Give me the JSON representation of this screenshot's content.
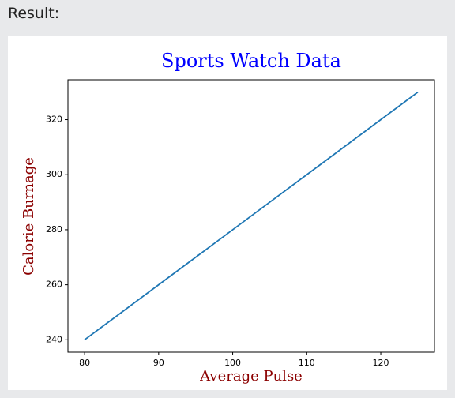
{
  "page": {
    "label": "Result:"
  },
  "chart_data": {
    "type": "line",
    "title": "Sports Watch Data",
    "x_label": "Average Pulse",
    "y_label": "Calorie Burnage",
    "x": [
      80,
      85,
      90,
      95,
      100,
      105,
      110,
      115,
      120,
      125
    ],
    "series": [
      {
        "color": "#1f77b4",
        "values": [
          240,
          250,
          260,
          270,
          280,
          290,
          300,
          310,
          320,
          330
        ]
      }
    ],
    "xlim": [
      77.75,
      127.25
    ],
    "xticks": [
      80,
      90,
      100,
      110,
      120
    ],
    "ylim": [
      235.5,
      334.5
    ],
    "yticks": [
      240,
      260,
      280,
      300,
      320
    ],
    "title_color": "blue",
    "label_color": "darkred"
  }
}
